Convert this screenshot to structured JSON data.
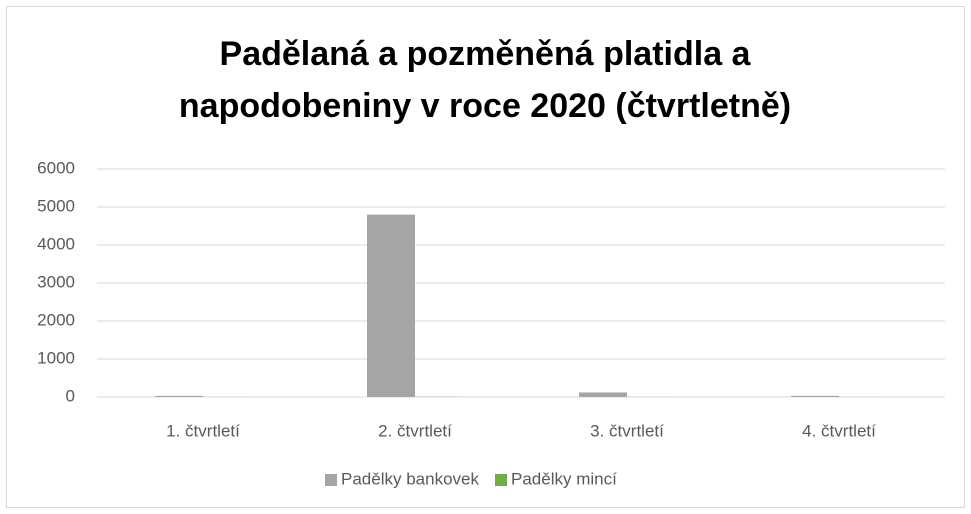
{
  "chart_data": {
    "type": "bar",
    "title": "Padělaná a pozměněná platidla a napodobeniny v roce 2020 (čtvrtletně)",
    "categories": [
      "1. čtvrtletí",
      "2. čtvrtletí",
      "3. čtvrtletí",
      "4. čtvrtletí"
    ],
    "series": [
      {
        "name": "Padělky bankovek",
        "color": "#a5a5a5",
        "values": [
          30,
          4800,
          120,
          30
        ]
      },
      {
        "name": "Padělky mincí",
        "color": "#70ad47",
        "values": [
          3,
          4,
          3,
          3
        ]
      }
    ],
    "ylim": [
      0,
      6000
    ],
    "yticks": [
      0,
      1000,
      2000,
      3000,
      4000,
      5000,
      6000
    ],
    "grid": true,
    "legend": "bottom"
  }
}
